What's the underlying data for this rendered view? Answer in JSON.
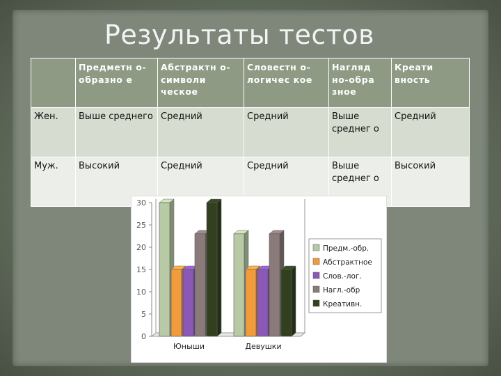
{
  "title": "Результаты тестов",
  "table": {
    "header": [
      "",
      "Предметн о-образно е",
      "Абстрактн о-символи ческое",
      "Словестн о-логичес кое",
      "Нагляд но-обра зное",
      "Креати вность"
    ],
    "rows": [
      [
        "Жен.",
        "Выше среднего",
        "Средний",
        "Средний",
        "Выше среднег о",
        "Средний"
      ],
      [
        "Муж.",
        "Высокий",
        "Средний",
        "Средний",
        "Выше среднег о",
        "Высокий"
      ]
    ]
  },
  "chart_data": {
    "type": "bar",
    "categories": [
      "Юныши",
      "Девушки"
    ],
    "series": [
      {
        "name": "Предм.-обр.",
        "values": [
          30,
          23
        ],
        "color": "#b7c9a5"
      },
      {
        "name": "Абстрактное",
        "values": [
          15,
          15
        ],
        "color": "#f29b3c"
      },
      {
        "name": "Слов.-лог.",
        "values": [
          15,
          15
        ],
        "color": "#8a58b7"
      },
      {
        "name": "Нагл.-обр",
        "values": [
          23,
          23
        ],
        "color": "#8a7b7a"
      },
      {
        "name": "Креативн.",
        "values": [
          30,
          15
        ],
        "color": "#33401f"
      }
    ],
    "yticks": [
      "0",
      "5",
      "10",
      "15",
      "20",
      "25",
      "30"
    ],
    "ylim": [
      0,
      30
    ],
    "legend": "right"
  }
}
